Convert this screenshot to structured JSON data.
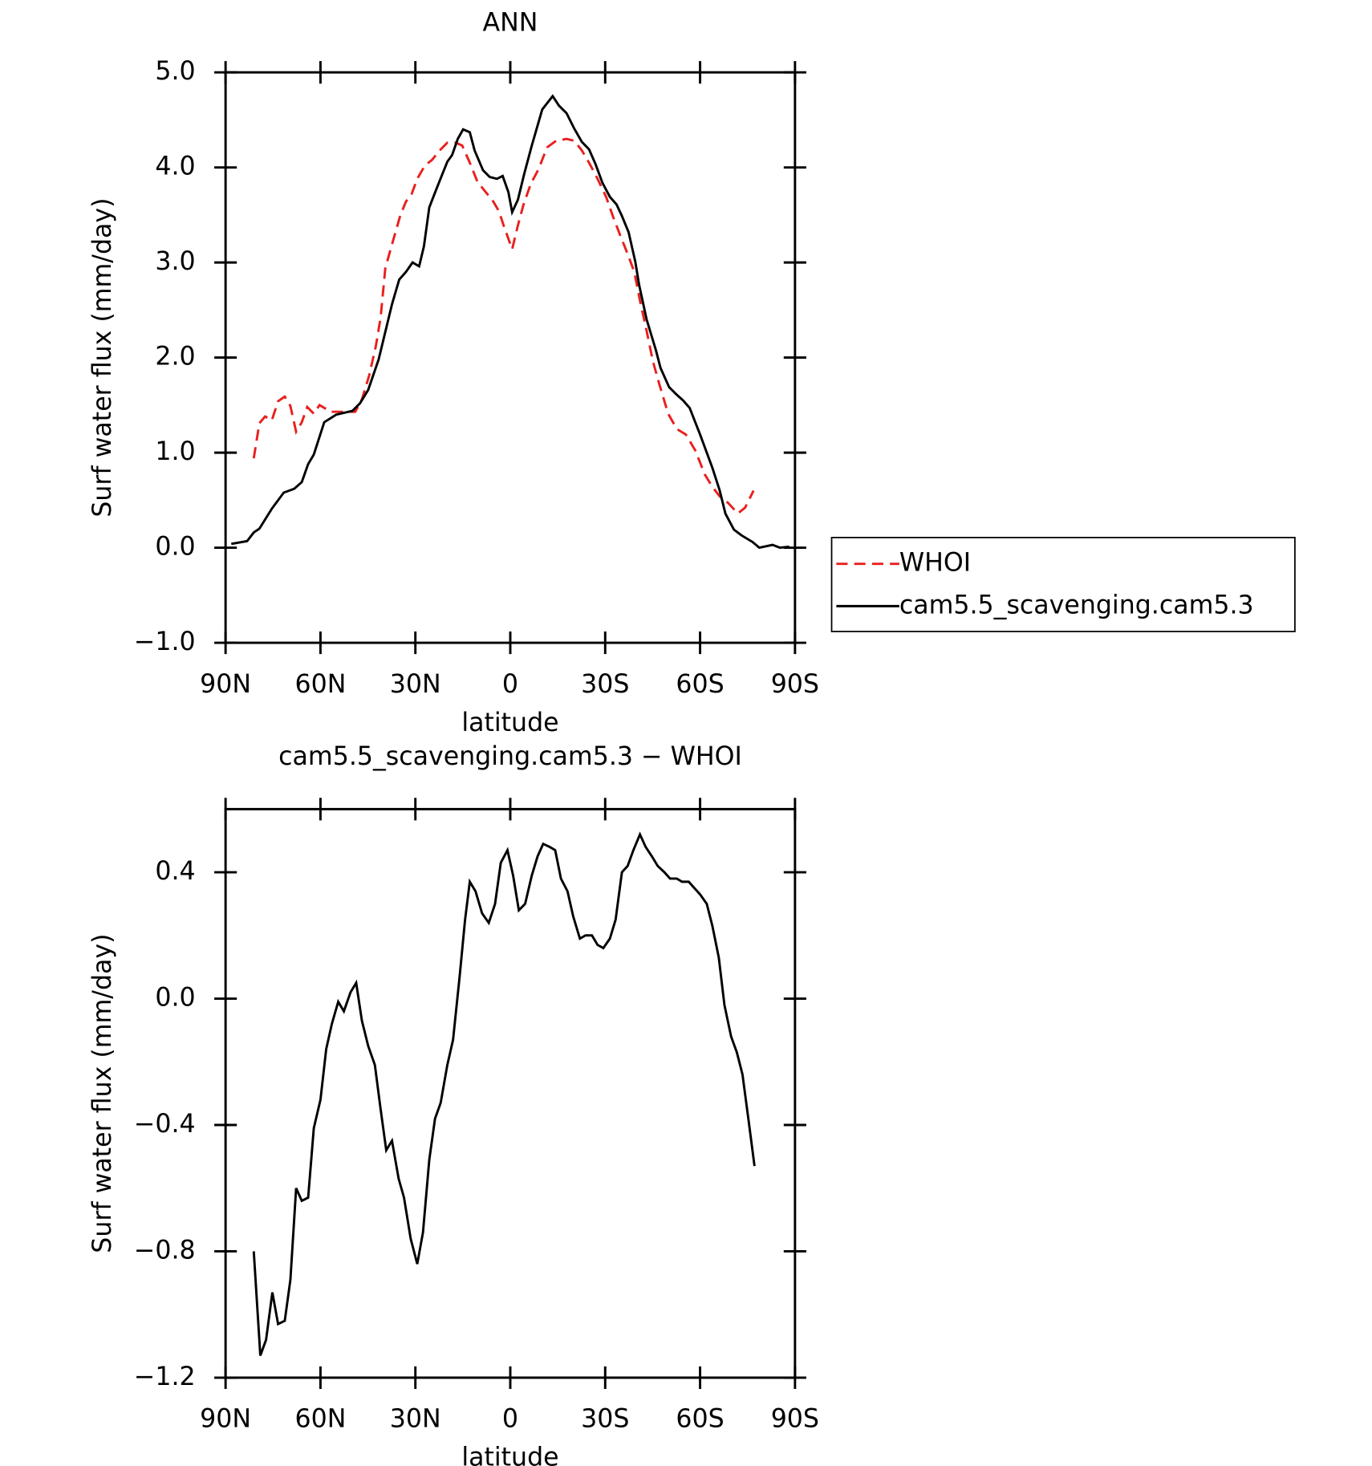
{
  "chart_data": [
    {
      "type": "line",
      "title": "ANN",
      "xlabel": "latitude",
      "ylabel": "Surf water flux (mm/day)",
      "xlim": [
        90,
        -90
      ],
      "ylim": [
        -1,
        5
      ],
      "xticks": [
        {
          "value": 90,
          "label": "90N"
        },
        {
          "value": 60,
          "label": "60N"
        },
        {
          "value": 30,
          "label": "30N"
        },
        0,
        {
          "value": -30,
          "label": "30S"
        },
        {
          "value": -60,
          "label": "60S"
        },
        {
          "value": -90,
          "label": "90S"
        }
      ],
      "yticks": [
        {
          "value": -1,
          "label": "−1.0"
        },
        {
          "value": 0,
          "label": "0.0"
        },
        {
          "value": 1,
          "label": "1.0"
        },
        {
          "value": 2,
          "label": "2.0"
        },
        {
          "value": 3,
          "label": "3.0"
        },
        {
          "value": 4,
          "label": "4.0"
        },
        {
          "value": 5,
          "label": "5.0"
        }
      ],
      "legend": "right",
      "series": [
        {
          "name": "WHOI",
          "color": "#e8201f",
          "dash": "dashed",
          "x": [
            81.1,
            79.3,
            77.5,
            75.4,
            73.4,
            71.3,
            69.5,
            67.7,
            65.9,
            64.2,
            62.1,
            60.3,
            56.7,
            52.9,
            49.0,
            46.9,
            44.6,
            42.5,
            41.0,
            39.5,
            37.4,
            34.8,
            33.0,
            31.2,
            29.4,
            27.0,
            24.7,
            22.3,
            19.9,
            17.2,
            15.2,
            12.8,
            10.4,
            8.0,
            5.7,
            3.6,
            2.1,
            -0.6,
            -2.4,
            -4.2,
            -6.5,
            -8.9,
            -11.6,
            -14.5,
            -17.8,
            -20.2,
            -22.6,
            -24.9,
            -27.6,
            -30.3,
            -32.4,
            -34.7,
            -37.1,
            -39.2,
            -41.0,
            -43.1,
            -45.1,
            -47.2,
            -49.9,
            -52.6,
            -55.5,
            -58.5,
            -61.5,
            -63.9,
            -66.2,
            -68.9,
            -71.9,
            -74.2,
            -76.9
          ],
          "values": [
            0.94,
            1.31,
            1.38,
            1.34,
            1.54,
            1.59,
            1.49,
            1.22,
            1.32,
            1.48,
            1.41,
            1.5,
            1.43,
            1.43,
            1.43,
            1.56,
            1.81,
            2.12,
            2.42,
            2.94,
            3.19,
            3.49,
            3.64,
            3.72,
            3.88,
            4.02,
            4.08,
            4.18,
            4.26,
            4.26,
            4.23,
            4.05,
            3.85,
            3.75,
            3.66,
            3.54,
            3.39,
            3.14,
            3.39,
            3.61,
            3.83,
            3.98,
            4.21,
            4.28,
            4.3,
            4.28,
            4.18,
            4.05,
            3.88,
            3.69,
            3.49,
            3.29,
            3.09,
            2.9,
            2.6,
            2.28,
            1.96,
            1.71,
            1.41,
            1.25,
            1.19,
            1.02,
            0.77,
            0.64,
            0.54,
            0.47,
            0.36,
            0.42,
            0.6
          ]
        },
        {
          "name": "cam5.5_scavenging.cam5.3",
          "color": "#000000",
          "dash": "solid",
          "x": [
            88.2,
            83.2,
            81.1,
            79.3,
            75.4,
            71.6,
            68.3,
            65.9,
            63.9,
            62.1,
            58.8,
            55.0,
            49.9,
            47.5,
            44.9,
            41.6,
            39.5,
            37.4,
            35.1,
            33.0,
            30.9,
            28.8,
            27.3,
            25.6,
            23.5,
            21.7,
            19.9,
            18.4,
            16.6,
            14.9,
            12.8,
            11.3,
            8.6,
            6.5,
            4.2,
            2.4,
            0.6,
            -0.6,
            -2.4,
            -4.4,
            -6.8,
            -10.1,
            -13.4,
            -15.4,
            -17.8,
            -20.2,
            -22.6,
            -24.9,
            -27.0,
            -29.1,
            -31.5,
            -33.6,
            -35.3,
            -37.4,
            -39.5,
            -40.7,
            -43.1,
            -46.0,
            -47.5,
            -50.2,
            -52.6,
            -54.6,
            -56.7,
            -60.0,
            -63.9,
            -66.2,
            -68.0,
            -70.7,
            -73.1,
            -76.6,
            -78.7,
            -82.9,
            -85.2,
            -88.2
          ],
          "values": [
            0.04,
            0.07,
            0.16,
            0.2,
            0.41,
            0.58,
            0.62,
            0.69,
            0.88,
            0.98,
            1.32,
            1.4,
            1.44,
            1.52,
            1.66,
            1.98,
            2.27,
            2.56,
            2.82,
            2.9,
            3.0,
            2.96,
            3.17,
            3.58,
            3.76,
            3.91,
            4.06,
            4.13,
            4.3,
            4.4,
            4.37,
            4.18,
            3.97,
            3.9,
            3.88,
            3.91,
            3.74,
            3.53,
            3.66,
            3.93,
            4.23,
            4.61,
            4.75,
            4.65,
            4.57,
            4.41,
            4.27,
            4.19,
            4.03,
            3.84,
            3.69,
            3.61,
            3.49,
            3.32,
            3.01,
            2.77,
            2.4,
            2.08,
            1.89,
            1.69,
            1.61,
            1.55,
            1.47,
            1.19,
            0.84,
            0.6,
            0.36,
            0.19,
            0.13,
            0.06,
            0.0,
            0.03,
            0.0,
            0.01
          ]
        }
      ]
    },
    {
      "type": "line",
      "title": "cam5.5_scavenging.cam5.3 − WHOI",
      "xlabel": "latitude",
      "ylabel": "Surf water flux (mm/day)",
      "xlim": [
        90,
        -90
      ],
      "ylim": [
        -1.2,
        0.6
      ],
      "xticks": [
        {
          "value": 90,
          "label": "90N"
        },
        {
          "value": 60,
          "label": "60N"
        },
        {
          "value": 30,
          "label": "30N"
        },
        0,
        {
          "value": -30,
          "label": "30S"
        },
        {
          "value": -60,
          "label": "60S"
        },
        {
          "value": -90,
          "label": "90S"
        }
      ],
      "yticks": [
        {
          "value": -1.2,
          "label": "−1.2"
        },
        {
          "value": -0.8,
          "label": "−0.8"
        },
        {
          "value": -0.4,
          "label": "−0.4"
        },
        {
          "value": 0,
          "label": "0.0"
        },
        {
          "value": 0.4,
          "label": "0.4"
        }
      ],
      "series": [
        {
          "color": "#000000",
          "dash": "solid",
          "x": [
            81.1,
            79.0,
            77.2,
            75.2,
            73.4,
            71.3,
            69.5,
            67.7,
            65.9,
            63.9,
            62.1,
            60.0,
            58.2,
            56.4,
            54.4,
            52.6,
            50.5,
            48.7,
            46.9,
            44.9,
            42.8,
            41.0,
            39.2,
            37.4,
            35.3,
            33.6,
            31.5,
            29.4,
            27.6,
            25.6,
            23.8,
            22.0,
            19.9,
            18.1,
            16.0,
            14.3,
            12.8,
            11.0,
            8.9,
            6.8,
            4.8,
            3.0,
            0.9,
            -0.9,
            -2.7,
            -4.7,
            -6.8,
            -8.6,
            -10.4,
            -12.5,
            -14.2,
            -16.0,
            -18.1,
            -19.9,
            -22.0,
            -23.8,
            -25.8,
            -27.6,
            -29.4,
            -31.5,
            -33.3,
            -35.3,
            -37.1,
            -38.9,
            -41.0,
            -42.8,
            -44.8,
            -46.6,
            -48.7,
            -50.5,
            -52.6,
            -54.3,
            -56.4,
            -58.2,
            -60.0,
            -62.1,
            -63.9,
            -65.9,
            -67.7,
            -69.8,
            -71.6,
            -73.4,
            -75.4,
            -77.2
          ],
          "values": [
            -0.8,
            -1.13,
            -1.08,
            -0.93,
            -1.03,
            -1.02,
            -0.89,
            -0.6,
            -0.64,
            -0.63,
            -0.41,
            -0.32,
            -0.16,
            -0.08,
            -0.01,
            -0.04,
            0.02,
            0.05,
            -0.07,
            -0.15,
            -0.21,
            -0.35,
            -0.48,
            -0.45,
            -0.57,
            -0.63,
            -0.76,
            -0.84,
            -0.74,
            -0.51,
            -0.38,
            -0.33,
            -0.21,
            -0.13,
            0.07,
            0.25,
            0.37,
            0.34,
            0.27,
            0.24,
            0.3,
            0.43,
            0.47,
            0.39,
            0.28,
            0.3,
            0.39,
            0.45,
            0.49,
            0.48,
            0.47,
            0.38,
            0.34,
            0.26,
            0.19,
            0.2,
            0.2,
            0.17,
            0.16,
            0.19,
            0.25,
            0.4,
            0.42,
            0.47,
            0.52,
            0.48,
            0.45,
            0.42,
            0.4,
            0.38,
            0.38,
            0.37,
            0.37,
            0.35,
            0.33,
            0.3,
            0.23,
            0.13,
            -0.02,
            -0.12,
            -0.17,
            -0.24,
            -0.39,
            -0.53
          ]
        }
      ]
    }
  ]
}
